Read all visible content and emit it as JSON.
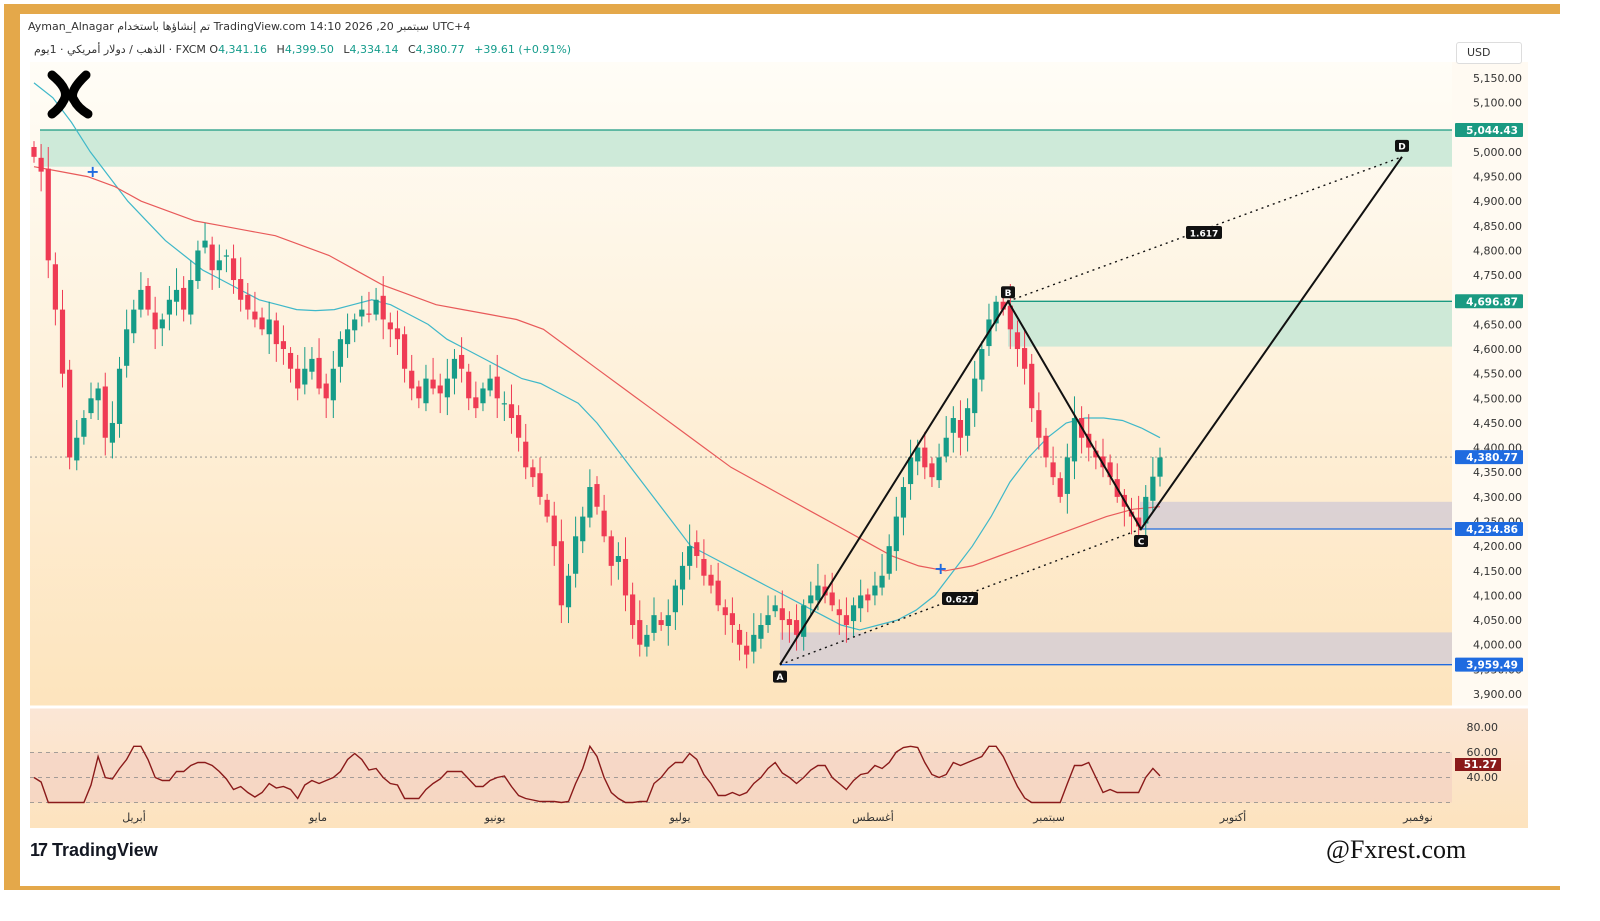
{
  "header": {
    "author": "Ayman_Alnagar",
    "published": "تم إنشاؤها باستخدام TradingView.com",
    "datetime": "سبتمبر 20, 2026 14:10 UTC+4",
    "symbol": "الذهب / دولار أمريكي · 1يوم · FXCM",
    "open_label": "O",
    "open": "4,341.16",
    "high_label": "H",
    "high": "4,399.50",
    "low_label": "L",
    "low": "4,334.14",
    "close_label": "C",
    "close": "4,380.77",
    "change": "+39.61 (+0.91%)",
    "currency": "USD"
  },
  "branding": {
    "tv_logo_text": "TradingView",
    "tv_glyph": "17",
    "watermark": "@Fxrest.com",
    "logo_icon": "x-logo-icon"
  },
  "colors": {
    "up": "#169c88",
    "down": "#ef3b54",
    "ema_fast": "#3fb8c9",
    "ema_slow": "#e85a5a",
    "zone_green": "#c9e8d6",
    "zone_gray": "#d8cfd4",
    "frame": "#e4a84a"
  },
  "price_axis": {
    "ticks": [
      "5,150.00",
      "5,100.00",
      "5,050.00",
      "5,000.00",
      "4,950.00",
      "4,900.00",
      "4,850.00",
      "4,800.00",
      "4,750.00",
      "4,700.00",
      "4,650.00",
      "4,600.00",
      "4,550.00",
      "4,500.00",
      "4,450.00",
      "4,400.00",
      "4,350.00",
      "4,300.00",
      "4,250.00",
      "4,200.00",
      "4,150.00",
      "4,100.00",
      "4,050.00",
      "4,000.00",
      "3,950.00",
      "3,900.00"
    ],
    "tags": [
      {
        "label": "5,044.43",
        "value": 5044.43,
        "color": "#1a9a82"
      },
      {
        "label": "4,696.87",
        "value": 4696.87,
        "color": "#1a9a82"
      },
      {
        "label": "4,380.77",
        "value": 4380.77,
        "color": "#1f6be0"
      },
      {
        "label": "4,234.86",
        "value": 4234.86,
        "color": "#1f6be0"
      },
      {
        "label": "3,959.49",
        "value": 3959.49,
        "color": "#1f6be0"
      }
    ]
  },
  "rsi": {
    "ticks": [
      "80.00",
      "60.00",
      "40.00"
    ],
    "value_label": "51.27",
    "value": 51.27
  },
  "time_axis": [
    "أبريل",
    "مايو",
    "يونيو",
    "يوليو",
    "أغسطس",
    "سبتمبر",
    "أكتوبر",
    "نوفمبر"
  ],
  "chart_data": {
    "type": "candlestick",
    "symbol": "الذهب / دولار أمريكي",
    "timeframe": "1يوم",
    "y_range": [
      3880,
      5180
    ],
    "zones": [
      {
        "top": 5044.43,
        "bottom": 4970
      },
      {
        "top": 4696.87,
        "bottom": 4605
      },
      {
        "top": 4290,
        "bottom": 4234.86
      },
      {
        "top": 4025,
        "bottom": 3959.49
      }
    ],
    "pattern": {
      "points": [
        {
          "label": "A",
          "price": 3959.49
        },
        {
          "label": "B",
          "price": 4696.87
        },
        {
          "label": "C",
          "price": 4234.86
        },
        {
          "label": "D",
          "price": 4990
        }
      ],
      "ratios": [
        {
          "label": "0.627",
          "value": 0.627
        },
        {
          "label": "1.617",
          "value": 1.617
        }
      ]
    },
    "closes": [
      4990,
      4960,
      4780,
      4680,
      4550,
      4380,
      4420,
      4460,
      4500,
      4520,
      4420,
      4450,
      4560,
      4640,
      4680,
      4720,
      4680,
      4640,
      4660,
      4700,
      4720,
      4680,
      4740,
      4800,
      4820,
      4760,
      4780,
      4790,
      4740,
      4700,
      4680,
      4660,
      4640,
      4660,
      4610,
      4600,
      4560,
      4520,
      4560,
      4580,
      4520,
      4500,
      4560,
      4620,
      4640,
      4660,
      4680,
      4670,
      4700,
      4660,
      4640,
      4620,
      4560,
      4520,
      4500,
      4540,
      4520,
      4510,
      4540,
      4580,
      4560,
      4500,
      4480,
      4520,
      4540,
      4500,
      4490,
      4460,
      4420,
      4360,
      4340,
      4300,
      4260,
      4200,
      4080,
      4140,
      4220,
      4260,
      4320,
      4280,
      4220,
      4160,
      4180,
      4100,
      4040,
      4000,
      4020,
      4060,
      4040,
      4060,
      4120,
      4160,
      4200,
      4180,
      4140,
      4120,
      4080,
      4060,
      4040,
      4000,
      3980,
      4020,
      4040,
      4060,
      4080,
      4050,
      4040,
      4020,
      4080,
      4100,
      4120,
      4100,
      4080,
      4060,
      4040,
      4080,
      4100,
      4090,
      4120,
      4140,
      4200,
      4260,
      4320,
      4380,
      4400,
      4360,
      4340,
      4380,
      4420,
      4460,
      4420,
      4480,
      4540,
      4600,
      4660,
      4696,
      4680,
      4640,
      4600,
      4560,
      4480,
      4420,
      4380,
      4340,
      4300,
      4380,
      4460,
      4420,
      4400,
      4380,
      4360,
      4340,
      4300,
      4280,
      4260,
      4240,
      4300,
      4341,
      4380
    ],
    "ema_fast": [
      5140,
      5110,
      5060,
      5000,
      4950,
      4900,
      4860,
      4820,
      4790,
      4760,
      4740,
      4720,
      4700,
      4690,
      4680,
      4678,
      4680,
      4690,
      4700,
      4690,
      4670,
      4650,
      4620,
      4600,
      4580,
      4560,
      4540,
      4530,
      4510,
      4490,
      4450,
      4400,
      4350,
      4300,
      4250,
      4200,
      4180,
      4160,
      4140,
      4120,
      4100,
      4080,
      4060,
      4040,
      4030,
      4040,
      4050,
      4070,
      4100,
      4150,
      4200,
      4260,
      4330,
      4380,
      4420,
      4450,
      4460,
      4460,
      4455,
      4440,
      4420
    ],
    "ema_slow": [
      4970,
      4960,
      4950,
      4930,
      4900,
      4880,
      4860,
      4850,
      4840,
      4830,
      4810,
      4790,
      4760,
      4730,
      4710,
      4690,
      4680,
      4670,
      4660,
      4640,
      4600,
      4560,
      4520,
      4480,
      4440,
      4400,
      4360,
      4330,
      4300,
      4270,
      4240,
      4210,
      4180,
      4160,
      4150,
      4160,
      4180,
      4200,
      4220,
      4240,
      4260,
      4275,
      4280
    ]
  }
}
